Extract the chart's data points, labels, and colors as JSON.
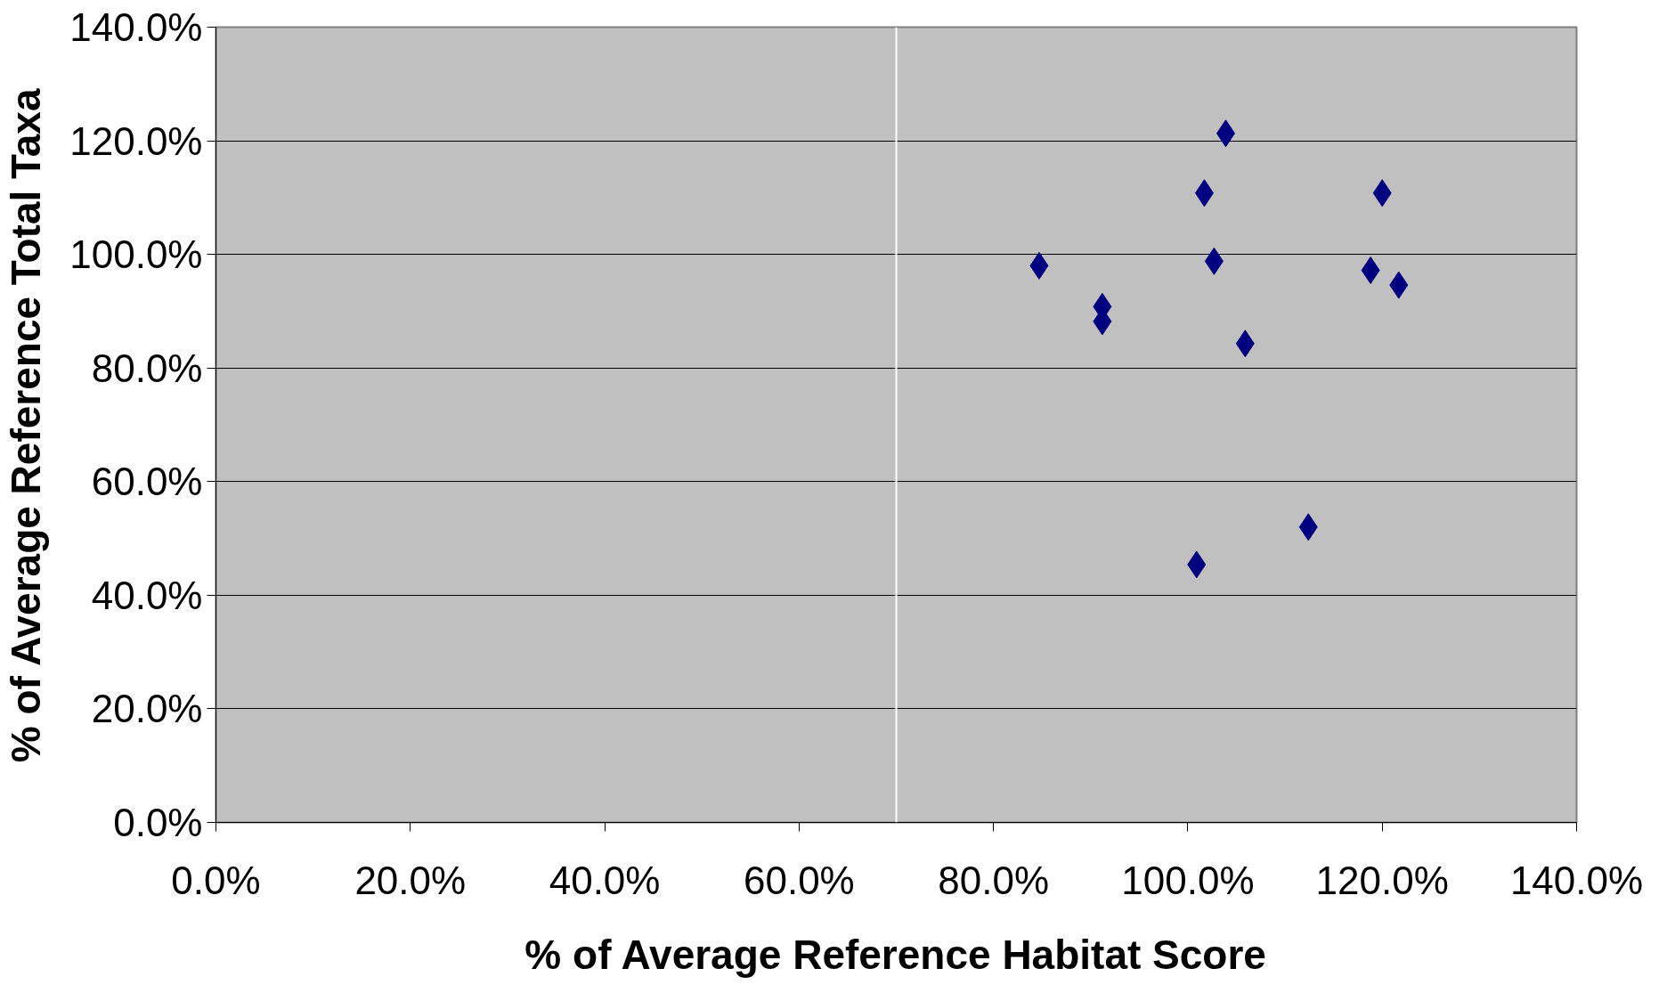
{
  "chart_data": {
    "type": "scatter",
    "xlabel": "% of Average Reference Habitat Score",
    "ylabel": "% of Average Reference Total Taxa",
    "x": [
      84.7,
      91.2,
      91.2,
      101.7,
      103.9,
      102.7,
      105.9,
      100.9,
      112.4,
      120.0,
      118.8,
      121.7
    ],
    "series": [
      {
        "color": "#000080",
        "values": [
          98.0,
          90.8,
          88.2,
          110.8,
          121.3,
          98.8,
          84.3,
          45.4,
          52.0,
          110.8,
          97.2,
          94.6
        ]
      }
    ],
    "marker": "diamond",
    "grid": "y",
    "xlim": [
      0,
      140
    ],
    "ylim": [
      0,
      140
    ],
    "xticks": [
      {
        "value": 0,
        "label": "0.0%"
      },
      {
        "value": 20,
        "label": "20.0%"
      },
      {
        "value": 40,
        "label": "40.0%"
      },
      {
        "value": 60,
        "label": "60.0%"
      },
      {
        "value": 80,
        "label": "80.0%"
      },
      {
        "value": 100,
        "label": "100.0%"
      },
      {
        "value": 120,
        "label": "120.0%"
      },
      {
        "value": 140,
        "label": "140.0%"
      }
    ],
    "yticks": [
      {
        "value": 0,
        "label": "0.0%"
      },
      {
        "value": 20,
        "label": "20.0%"
      },
      {
        "value": 40,
        "label": "40.0%"
      },
      {
        "value": 60,
        "label": "60.0%"
      },
      {
        "value": 80,
        "label": "80.0%"
      },
      {
        "value": 100,
        "label": "100.0%"
      },
      {
        "value": 120,
        "label": "120.0%"
      },
      {
        "value": 140,
        "label": "140.0%"
      }
    ],
    "ref_lines": [
      {
        "axis": "x",
        "value": 70,
        "color": "#ffffff"
      }
    ]
  }
}
